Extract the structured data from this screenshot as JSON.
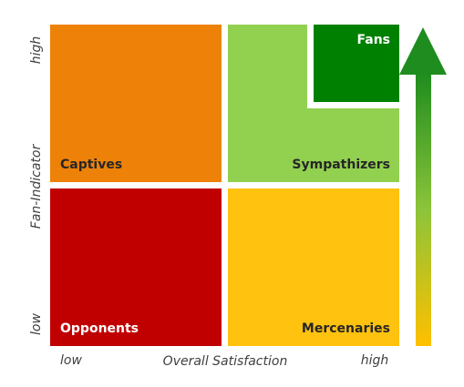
{
  "quadrants": {
    "top_left": "Captives",
    "top_right": "Sympathizers",
    "top_right_corner": "Fans",
    "bottom_left": "Opponents",
    "bottom_right": "Mercenaries"
  },
  "y_axis": {
    "title": "Fan-Indicator",
    "low": "low",
    "high": "high"
  },
  "x_axis": {
    "title": "Overall Satisfaction",
    "low": "low",
    "high": "high"
  }
}
